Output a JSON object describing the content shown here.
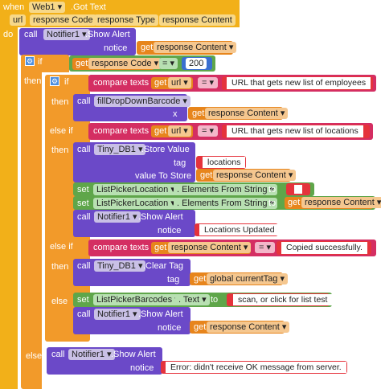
{
  "event": {
    "when": "when",
    "component": "Web1",
    "event_name": ".Got Text",
    "do": "do",
    "params": [
      "url",
      "response Code",
      "response Type",
      "response Content"
    ]
  },
  "kw": {
    "call": "call",
    "set": "set",
    "get": "get",
    "to": "to",
    "if": "if",
    "then": "then",
    "else_if": "else if",
    "else": "else",
    "compare_texts": "compare texts",
    "eq": "=",
    "x": "x",
    "tag": "tag",
    "value_to_store": "value To Store",
    "notice": "notice",
    "dropdown_arrow": "▾",
    "elements_from_string": ". Elements From String",
    "text_prop": ". Text",
    "show_alert": ".Show Alert",
    "store_value": ".Store Value",
    "clear_tag": ".Clear Tag"
  },
  "blocks": {
    "alert1_component": "Notifier1",
    "alert1_value": "response Content",
    "if_get": "response Code",
    "if_num": "200",
    "cmp1_get": "url",
    "cmp1_text": "URL that gets new list of employees",
    "proc_name": "fillDropDownBarcode",
    "proc_get": "response Content",
    "cmp2_get": "url",
    "cmp2_text": "URL that gets new list of locations",
    "tinydb": "Tiny_DB1",
    "store_tag": "locations",
    "store_value": "response Content",
    "set1_comp": "ListPickerLocation",
    "set2_comp": "ListPickerLocation",
    "set2_value": "response Content",
    "alert2_component": "Notifier1",
    "alert2_text": "Locations Updated",
    "cmp3_get": "response Content",
    "cmp3_text": "Copied successfully.",
    "clear_comp": "Tiny_DB1",
    "clear_tag_get": "global currentTag",
    "set3_comp": "ListPickerBarcodes",
    "set3_text": "scan, or click for list test",
    "alert3_component": "Notifier1",
    "alert3_value": "response Content",
    "alert4_component": "Notifier1",
    "alert4_text": "Error: didn't receive OK message from server."
  },
  "colors": {
    "event": "#f2b019",
    "call": "#6b49c8",
    "control": "#f29a2a",
    "text": "#d42e62",
    "logic": "#5fa64a",
    "set": "#5fa64a"
  },
  "icons": {
    "mutator": "gear-icon"
  }
}
